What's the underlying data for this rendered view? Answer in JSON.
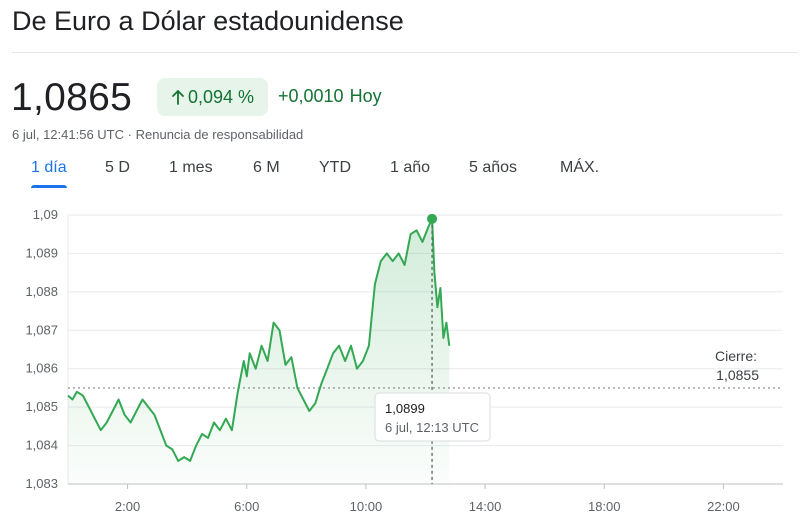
{
  "header": {
    "title": "De Euro a Dólar estadounidense",
    "price": "1,0865",
    "pct_change": "0,094 %",
    "abs_change": "+0,0010",
    "abs_change_suffix": "Hoy",
    "timestamp": "6 jul, 12:41:56 UTC",
    "separator": "·",
    "disclaimer": "Renuncia de responsabilidad"
  },
  "tabs": [
    {
      "label": "1 día",
      "active": true
    },
    {
      "label": "5 D",
      "active": false
    },
    {
      "label": "1 mes",
      "active": false
    },
    {
      "label": "6 M",
      "active": false
    },
    {
      "label": "YTD",
      "active": false
    },
    {
      "label": "1 año",
      "active": false
    },
    {
      "label": "5 años",
      "active": false
    },
    {
      "label": "MÁX.",
      "active": false
    }
  ],
  "colors": {
    "positive": "#137333",
    "positive_bg": "#e6f4ea",
    "line": "#34a853",
    "accent": "#1a73e8"
  },
  "chart_data": {
    "type": "line",
    "x_unit": "hours UTC",
    "xlim": [
      0,
      24
    ],
    "ylim": [
      1.083,
      1.09
    ],
    "grid": true,
    "x_ticks": [
      "2:00",
      "6:00",
      "10:00",
      "14:00",
      "18:00",
      "22:00"
    ],
    "y_ticks": [
      "1,083",
      "1,084",
      "1,085",
      "1,086",
      "1,087",
      "1,088",
      "1,089",
      "1,09"
    ],
    "previous_close": 1.0855,
    "previous_close_label": "Cierre:",
    "previous_close_value": "1,0855",
    "tooltip": {
      "value": "1,0899",
      "time": "6 jul, 12:13 UTC"
    },
    "highlight_point": {
      "x": 12.22,
      "y": 1.0899
    },
    "series": [
      {
        "x": [
          0,
          0.15,
          0.3,
          0.5,
          0.7,
          0.9,
          1.1,
          1.3,
          1.5,
          1.7,
          1.9,
          2.1,
          2.3,
          2.5,
          2.7,
          2.9,
          3.1,
          3.3,
          3.5,
          3.7,
          3.9,
          4.1,
          4.3,
          4.5,
          4.7,
          4.9,
          5.1,
          5.3,
          5.5,
          5.7,
          5.9,
          6.0,
          6.1,
          6.3,
          6.5,
          6.7,
          6.9,
          7.1,
          7.3,
          7.5,
          7.7,
          7.9,
          8.1,
          8.3,
          8.5,
          8.7,
          8.9,
          9.1,
          9.3,
          9.5,
          9.7,
          9.9,
          10.1,
          10.2,
          10.3,
          10.5,
          10.7,
          10.9,
          11.1,
          11.3,
          11.5,
          11.7,
          11.9,
          12.1,
          12.22,
          12.3,
          12.4,
          12.5,
          12.6,
          12.7,
          12.8
        ],
        "y": [
          1.0853,
          1.0852,
          1.0854,
          1.0853,
          1.085,
          1.0847,
          1.0844,
          1.0846,
          1.0849,
          1.0852,
          1.0848,
          1.0846,
          1.0849,
          1.0852,
          1.085,
          1.0848,
          1.0844,
          1.084,
          1.0839,
          1.0836,
          1.0837,
          1.0836,
          1.084,
          1.0843,
          1.0842,
          1.0846,
          1.0844,
          1.0847,
          1.0844,
          1.0854,
          1.0862,
          1.0858,
          1.0864,
          1.086,
          1.0866,
          1.0862,
          1.0872,
          1.087,
          1.0861,
          1.0863,
          1.0855,
          1.0852,
          1.0849,
          1.0851,
          1.0856,
          1.086,
          1.0864,
          1.0866,
          1.0862,
          1.0866,
          1.086,
          1.0862,
          1.0866,
          1.0874,
          1.0882,
          1.0888,
          1.089,
          1.0888,
          1.089,
          1.0887,
          1.0895,
          1.0896,
          1.0893,
          1.0897,
          1.0899,
          1.0885,
          1.0876,
          1.0881,
          1.0868,
          1.0872,
          1.0866
        ]
      }
    ]
  }
}
